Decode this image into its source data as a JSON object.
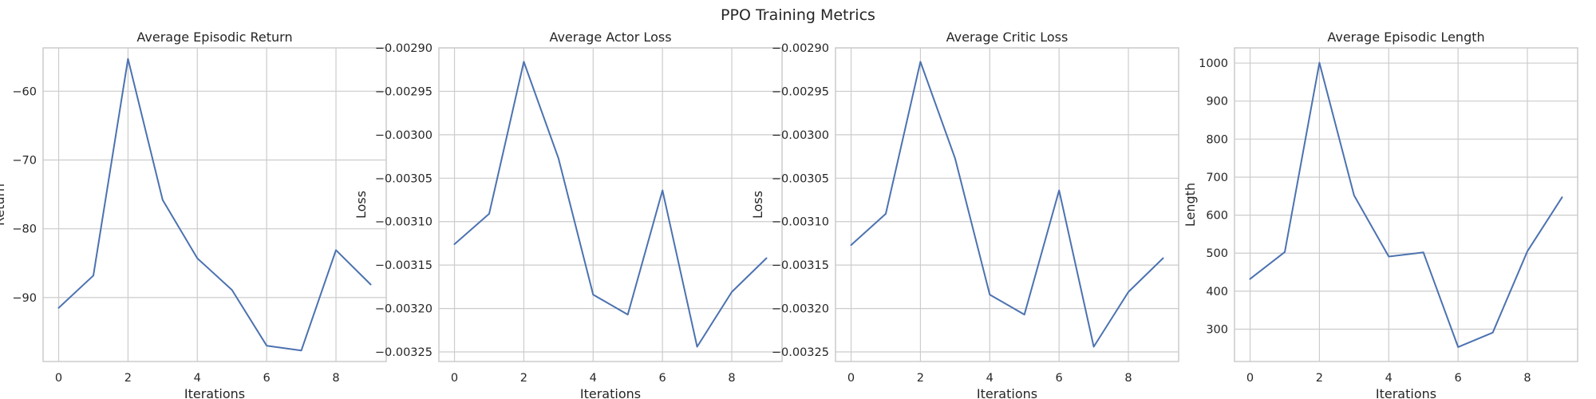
{
  "figure": {
    "title": "PPO Training Metrics"
  },
  "colors": {
    "line": "#4c72b0",
    "grid": "#cccccc",
    "text": "#262626"
  },
  "chart_data": [
    {
      "type": "line",
      "title": "Average Episodic Return",
      "xlabel": "Iterations",
      "ylabel": "Return",
      "x": [
        0,
        1,
        2,
        3,
        4,
        5,
        6,
        7,
        8,
        9
      ],
      "values": [
        -91.5,
        -86.8,
        -55.3,
        -75.8,
        -84.3,
        -88.9,
        -97.0,
        -97.7,
        -83.1,
        -88.1
      ],
      "xlim": [
        -0.45,
        9.45
      ],
      "ylim": [
        -99.3,
        -53.7
      ],
      "xticks": [
        0,
        2,
        4,
        6,
        8
      ],
      "yticks": [
        -90,
        -80,
        -70,
        -60
      ],
      "ytick_labels": [
        "−90",
        "−80",
        "−70",
        "−60"
      ],
      "grid": true
    },
    {
      "type": "line",
      "title": "Average Actor Loss",
      "xlabel": "Iterations",
      "ylabel": "Loss",
      "x": [
        0,
        1,
        2,
        3,
        4,
        5,
        6,
        7,
        8,
        9
      ],
      "values": [
        -0.003126,
        -0.003091,
        -0.002916,
        -0.003027,
        -0.003184,
        -0.003207,
        -0.003064,
        -0.003244,
        -0.003181,
        -0.003142
      ],
      "xlim": [
        -0.45,
        9.45
      ],
      "ylim": [
        -0.003261,
        -0.0029
      ],
      "xticks": [
        0,
        2,
        4,
        6,
        8
      ],
      "yticks": [
        -0.00325,
        -0.0032,
        -0.00315,
        -0.0031,
        -0.00305,
        -0.003,
        -0.00295,
        -0.0029
      ],
      "ytick_labels": [
        "−0.00325",
        "−0.00320",
        "−0.00315",
        "−0.00310",
        "−0.00305",
        "−0.00300",
        "−0.00295",
        "−0.00290"
      ],
      "grid": true
    },
    {
      "type": "line",
      "title": "Average Critic Loss",
      "xlabel": "Iterations",
      "ylabel": "Loss",
      "x": [
        0,
        1,
        2,
        3,
        4,
        5,
        6,
        7,
        8,
        9
      ],
      "values": [
        -0.003127,
        -0.003091,
        -0.002916,
        -0.003027,
        -0.003184,
        -0.003207,
        -0.003064,
        -0.003244,
        -0.003181,
        -0.003142
      ],
      "xlim": [
        -0.45,
        9.45
      ],
      "ylim": [
        -0.003261,
        -0.0029
      ],
      "xticks": [
        0,
        2,
        4,
        6,
        8
      ],
      "yticks": [
        -0.00325,
        -0.0032,
        -0.00315,
        -0.0031,
        -0.00305,
        -0.003,
        -0.00295,
        -0.0029
      ],
      "ytick_labels": [
        "−0.00325",
        "−0.00320",
        "−0.00315",
        "−0.00310",
        "−0.00305",
        "−0.00300",
        "−0.00295",
        "−0.00290"
      ],
      "grid": true
    },
    {
      "type": "line",
      "title": "Average Episodic Length",
      "xlabel": "Iterations",
      "ylabel": "Length",
      "x": [
        0,
        1,
        2,
        3,
        4,
        5,
        6,
        7,
        8,
        9
      ],
      "values": [
        432,
        503,
        1001,
        652,
        491,
        502,
        253,
        291,
        505,
        647
      ],
      "xlim": [
        -0.45,
        9.45
      ],
      "ylim": [
        215,
        1040
      ],
      "xticks": [
        0,
        2,
        4,
        6,
        8
      ],
      "yticks": [
        300,
        400,
        500,
        600,
        700,
        800,
        900,
        1000
      ],
      "ytick_labels": [
        "300",
        "400",
        "500",
        "600",
        "700",
        "800",
        "900",
        "1000"
      ],
      "grid": true
    }
  ]
}
